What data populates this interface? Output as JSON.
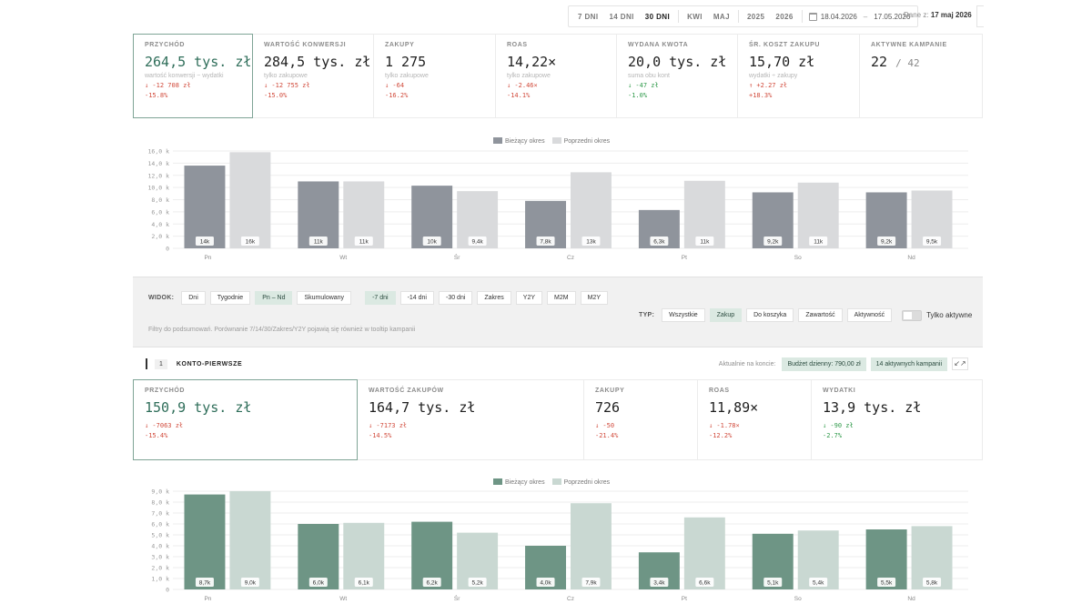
{
  "toolbar": {
    "ranges": [
      "7 DNI",
      "14 DNI",
      "30 DNI",
      "KWI",
      "MAJ",
      "2025",
      "2026"
    ],
    "active_range": "30 DNI",
    "date_from": "18.04.2026",
    "date_sep": "–",
    "date_to": "17.05.2026",
    "data_from_label": "Dane z:",
    "data_from_value": "17 maj 2026"
  },
  "kpis": [
    {
      "label": "PRZYCHÓD",
      "value": "264,5 tys. zł",
      "sub": "wartość konwersji − wydatki",
      "delta": "↓ -12 708 zł",
      "pct": "-15.8%",
      "dir": "down"
    },
    {
      "label": "WARTOŚĆ KONWERSJI",
      "value": "284,5 tys. zł",
      "sub": "tylko zakupowe",
      "delta": "↓ -12 755 zł",
      "pct": "-15.0%",
      "dir": "down"
    },
    {
      "label": "ZAKUPY",
      "value": "1 275",
      "sub": "tylko zakupowe",
      "delta": "↓ -64",
      "pct": "-16.2%",
      "dir": "down"
    },
    {
      "label": "ROAS",
      "value": "14,22×",
      "sub": "tylko zakupowe",
      "delta": "↓ -2.46×",
      "pct": "-14.1%",
      "dir": "down"
    },
    {
      "label": "WYDANA KWOTA",
      "value": "20,0 tys. zł",
      "sub": "suma obu kont",
      "delta": "↓ -47 zł",
      "pct": "-1.0%",
      "dir": "down-good"
    },
    {
      "label": "ŚR. KOSZT ZAKUPU",
      "value": "15,70 zł",
      "sub": "wydatki ÷ zakupy",
      "delta": "↑ +2.27 zł",
      "pct": "+18.3%",
      "dir": "up-bad"
    },
    {
      "label": "AKTYWNE KAMPANIE",
      "value": "22",
      "value_extra": "/ 42",
      "sub": "",
      "delta": "",
      "pct": "",
      "dir": ""
    }
  ],
  "chart1": {
    "legend_current": "Bieżący okres",
    "legend_previous": "Poprzedni okres",
    "color_current": "#8f949c",
    "color_previous": "#d9dadc",
    "chart_data": {
      "type": "bar",
      "categories": [
        "Pn",
        "Wt",
        "Śr",
        "Cz",
        "Pt",
        "So",
        "Nd"
      ],
      "series": [
        {
          "name": "Bieżący okres",
          "values": [
            13.6,
            11.0,
            10.3,
            7.8,
            6.3,
            9.2,
            9.2
          ],
          "labels": [
            "14k",
            "11k",
            "10k",
            "7,8k",
            "6,3k",
            "9,2k",
            "9,2k"
          ]
        },
        {
          "name": "Poprzedni okres",
          "values": [
            15.8,
            11.0,
            9.4,
            12.5,
            11.1,
            10.8,
            9.5
          ],
          "labels": [
            "16k",
            "11k",
            "9,4k",
            "13k",
            "11k",
            "11k",
            "9,5k"
          ]
        }
      ],
      "yticks": [
        "0",
        "2,0 k",
        "4,0 k",
        "6,0 k",
        "8,0 k",
        "10,0 k",
        "12,0 k",
        "14,0 k",
        "16,0 k"
      ],
      "ylim": [
        0,
        16
      ],
      "grid": true
    }
  },
  "filters": {
    "view_caption": "WIDOK:",
    "view_options": [
      "Dni",
      "Tygodnie",
      "Pn – Nd",
      "Skumulowany"
    ],
    "view_active": "Pn – Nd",
    "period_options": [
      "-7 dni",
      "-14 dni",
      "-30 dni",
      "Zakres",
      "Y2Y",
      "M2M",
      "M2Y"
    ],
    "period_active": "-7 dni",
    "type_caption": "TYP:",
    "type_options": [
      "Wszystkie",
      "Zakup",
      "Do koszyka",
      "Zawartość",
      "Aktywność"
    ],
    "type_active": "Zakup",
    "toggle_label": "Tylko aktywne",
    "note": "Filtry do podsumowań. Porównanie 7/14/30/Zakres/Y2Y pojawią się również w tooltip kampanii"
  },
  "account": {
    "index": "1",
    "name": "KONTO-PIERWSZE",
    "current_caption": "Aktualnie na koncie:",
    "budget_pill": "Budżet dzienny: 790,00 zł",
    "campaigns_pill": "14 aktywnych kampanii",
    "collapse_icon": "↙↗"
  },
  "kpis2": [
    {
      "label": "PRZYCHÓD",
      "value": "150,9 tys. zł",
      "delta": "↓ -7063 zł",
      "pct": "-15.4%",
      "dir": "down"
    },
    {
      "label": "WARTOŚĆ ZAKUPÓW",
      "value": "164,7 tys. zł",
      "delta": "↓ -7173 zł",
      "pct": "-14.5%",
      "dir": "down"
    },
    {
      "label": "ZAKUPY",
      "value": "726",
      "delta": "↓ -50",
      "pct": "-21.4%",
      "dir": "down"
    },
    {
      "label": "ROAS",
      "value": "11,89×",
      "delta": "↓ -1.78×",
      "pct": "-12.2%",
      "dir": "down"
    },
    {
      "label": "WYDATKI",
      "value": "13,9 tys. zł",
      "delta": "↓ -90 zł",
      "pct": "-2.7%",
      "dir": "down-good"
    }
  ],
  "chart2": {
    "legend_current": "Bieżący okres",
    "legend_previous": "Poprzedni okres",
    "color_current": "#6e9585",
    "color_previous": "#c9d8d2",
    "chart_data": {
      "type": "bar",
      "categories": [
        "Pn",
        "Wt",
        "Śr",
        "Cz",
        "Pt",
        "So",
        "Nd"
      ],
      "series": [
        {
          "name": "Bieżący okres",
          "values": [
            8.7,
            6.0,
            6.2,
            4.0,
            3.4,
            5.1,
            5.5
          ],
          "labels": [
            "8,7k",
            "6,0k",
            "6,2k",
            "4,0k",
            "3,4k",
            "5,1k",
            "5,5k"
          ]
        },
        {
          "name": "Poprzedni okres",
          "values": [
            9.0,
            6.1,
            5.2,
            7.9,
            6.6,
            5.4,
            5.8
          ],
          "labels": [
            "9,0k",
            "6,1k",
            "5,2k",
            "7,9k",
            "6,6k",
            "5,4k",
            "5,8k"
          ]
        }
      ],
      "yticks": [
        "0",
        "1,0 k",
        "2,0 k",
        "3,0 k",
        "4,0 k",
        "5,0 k",
        "6,0 k",
        "7,0 k",
        "8,0 k",
        "9,0 k"
      ],
      "ylim": [
        0,
        9
      ],
      "grid": true
    }
  }
}
